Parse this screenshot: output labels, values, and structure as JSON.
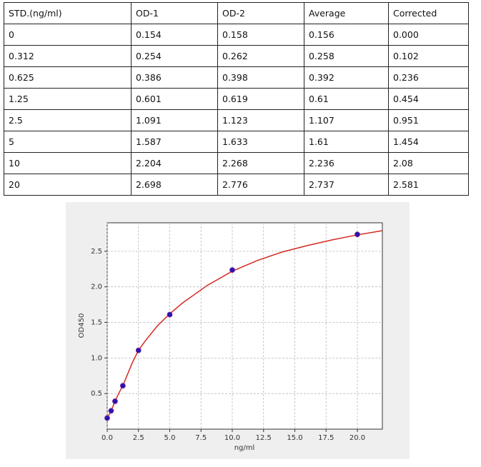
{
  "table": {
    "header": [
      "STD.(ng/ml)",
      "OD-1",
      "OD-2",
      "Average",
      "Corrected"
    ],
    "rows": [
      [
        "0",
        "0.154",
        "0.158",
        "0.156",
        "0.000"
      ],
      [
        "0.312",
        "0.254",
        "0.262",
        "0.258",
        "0.102"
      ],
      [
        "0.625",
        "0.386",
        "0.398",
        "0.392",
        "0.236"
      ],
      [
        "1.25",
        "0.601",
        "0.619",
        "0.61",
        "0.454"
      ],
      [
        "2.5",
        "1.091",
        "1.123",
        "1.107",
        "0.951"
      ],
      [
        "5",
        "1.587",
        "1.633",
        "1.61",
        "1.454"
      ],
      [
        "10",
        "2.204",
        "2.268",
        "2.236",
        "2.08"
      ],
      [
        "20",
        "2.698",
        "2.776",
        "2.737",
        "2.581"
      ]
    ]
  },
  "chart_data": {
    "type": "scatter",
    "xlabel": "ng/ml",
    "ylabel": "OD450",
    "xlim": [
      0,
      22
    ],
    "ylim": [
      0,
      2.9
    ],
    "xticks": [
      {
        "value": 0,
        "label": "0.0"
      },
      2.5,
      {
        "value": 5,
        "label": "5.0"
      },
      7.5,
      {
        "value": 10,
        "label": "10.0"
      },
      12.5,
      {
        "value": 15,
        "label": "15.0"
      },
      17.5,
      {
        "value": 20,
        "label": "20.0"
      }
    ],
    "yticks": [
      0.5,
      {
        "value": 1,
        "label": "1.0"
      },
      1.5,
      {
        "value": 2,
        "label": "2.0"
      },
      2.5
    ],
    "grid": true,
    "series": [
      {
        "kind": "line",
        "color": "#d42a20",
        "x": [
          0,
          0.312,
          0.625,
          1,
          1.25,
          2,
          2.5,
          3,
          4,
          5,
          6,
          8,
          10,
          12,
          14,
          16,
          18,
          20,
          22
        ],
        "values": [
          0.156,
          0.258,
          0.392,
          0.53,
          0.61,
          0.93,
          1.107,
          1.23,
          1.45,
          1.62,
          1.77,
          2.02,
          2.22,
          2.37,
          2.49,
          2.58,
          2.66,
          2.73,
          2.79
        ]
      },
      {
        "kind": "points",
        "color": "#2a14b0",
        "x": [
          0,
          0.312,
          0.625,
          1.25,
          2.5,
          5,
          10,
          20
        ],
        "values": [
          0.156,
          0.258,
          0.392,
          0.61,
          1.107,
          1.61,
          2.236,
          2.737
        ]
      }
    ]
  }
}
